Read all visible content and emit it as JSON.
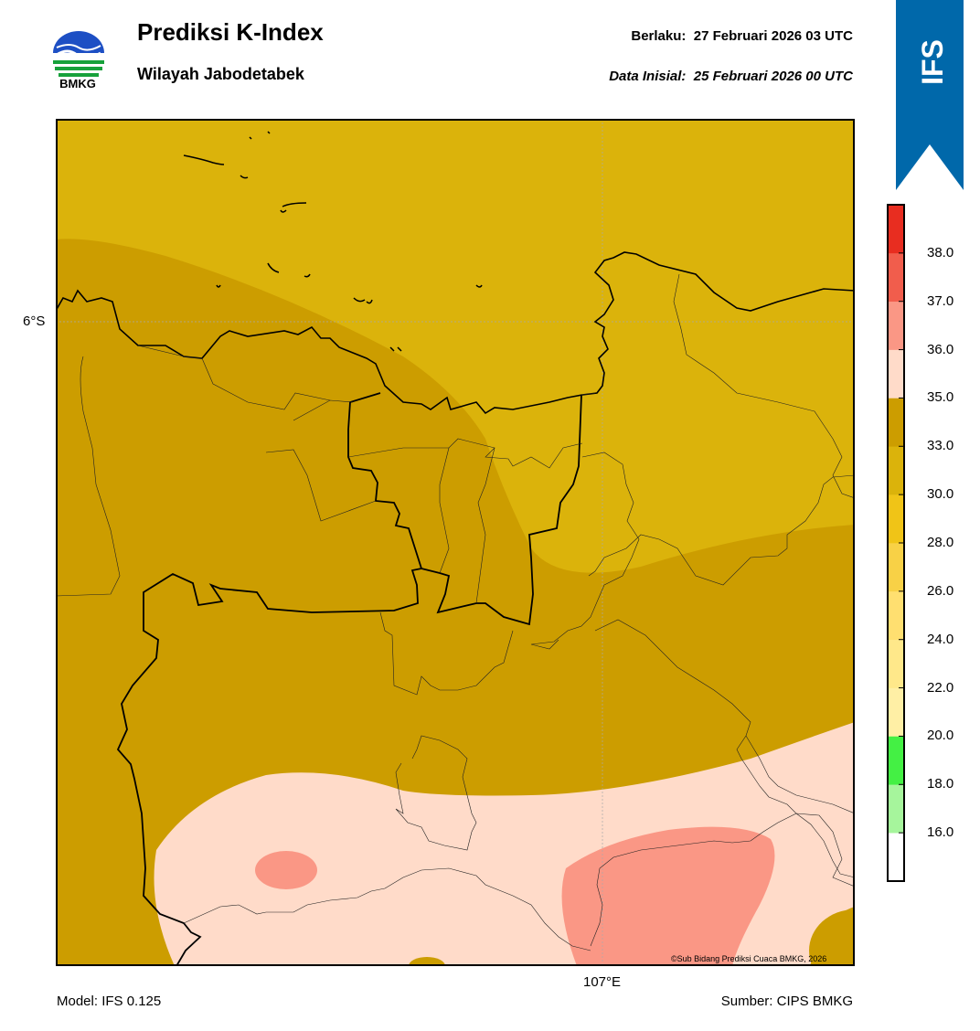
{
  "header": {
    "title": "Prediksi K-Index",
    "subtitle": "Wilayah Jabodetabek",
    "valid_label": "Berlaku:",
    "valid_value": "27 Februari 2026 03 UTC",
    "init_label": "Data Inisial:",
    "init_value": "25 Februari 2026 00 UTC"
  },
  "logo": {
    "text": "BMKG",
    "icon": "bmkg-logo-icon"
  },
  "ribbon": {
    "text": "IFS",
    "color": "#0068aa"
  },
  "map": {
    "lat_label": "6°S",
    "lon_label": "107°E",
    "copyright": "©Sub Bidang Prediksi Cuaca BMKG, 2026",
    "colors": {
      "k_30_33": "#dbb30b",
      "k_33_35": "#cc9d00",
      "k_35_36": "#ffdbc9",
      "k_36_37": "#fa9785"
    }
  },
  "colorbar": {
    "ticks": [
      "16.0",
      "18.0",
      "20.0",
      "22.0",
      "24.0",
      "26.0",
      "28.0",
      "30.0",
      "33.0",
      "35.0",
      "36.0",
      "37.0",
      "38.0"
    ],
    "colors": [
      "#ffffff",
      "#a6f59c",
      "#44f044",
      "#ffefa5",
      "#ffe88a",
      "#ffdf70",
      "#f8d146",
      "#f0c417",
      "#dbb30b",
      "#cc9d00",
      "#ffdbc9",
      "#fa9785",
      "#f15d4c",
      "#e82d20"
    ]
  },
  "footer": {
    "model": "Model: IFS 0.125",
    "source": "Sumber: CIPS BMKG"
  }
}
